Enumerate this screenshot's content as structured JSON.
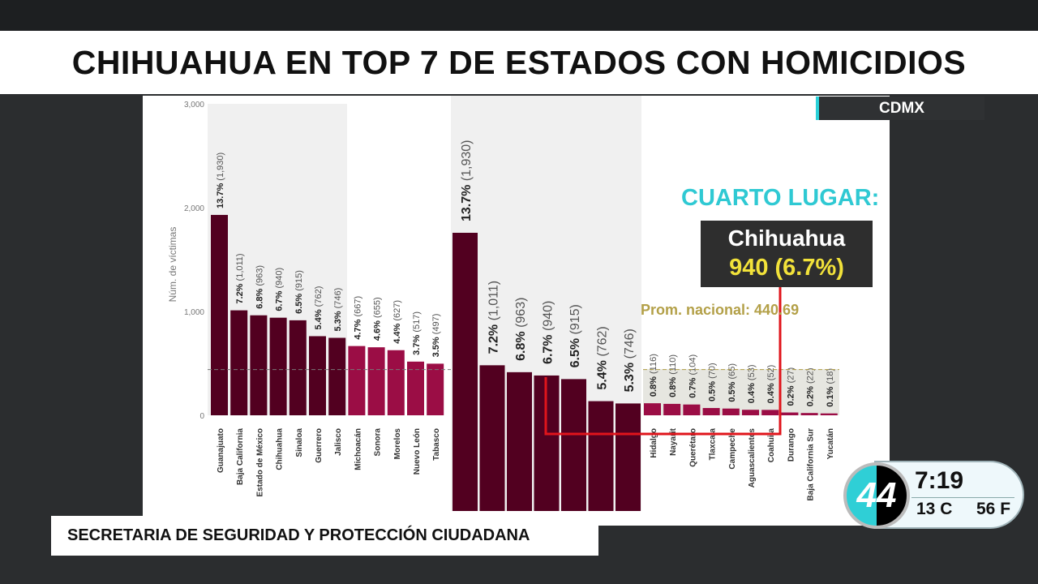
{
  "title": "CHIHUAHUA EN TOP 7 DE ESTADOS CON HOMICIDIOS",
  "location_tag": "CDMX",
  "highlight": {
    "heading": "CUARTO LUGAR:",
    "state": "Chihuahua",
    "value": "940 (6.7%)"
  },
  "source": "SECRETARIA DE SEGURIDAD Y PROTECCIÓN CIUDADANA",
  "clock": {
    "logo": "44",
    "time": "7:19",
    "temp_c": "13 C",
    "temp_f": "56 F"
  },
  "colors": {
    "dark_bar": "#520020",
    "light_bar": "#9b0d45",
    "accent": "#2fc9d3",
    "highlight_line": "#e0141b"
  },
  "chart_data": {
    "type": "bar",
    "ylabel": "Núm. de víctimas",
    "ylim": [
      0,
      3000
    ],
    "yticks": [
      "0",
      "1,000",
      "2,000",
      "3,000"
    ],
    "average_label": "Prom. nacional: 440.69",
    "average": 440.69,
    "categories": [
      "Guanajuato",
      "Baja California",
      "Estado de México",
      "Chihuahua",
      "Sinaloa",
      "Guerrero",
      "Jalisco",
      "Michoacán",
      "Sonora",
      "Morelos",
      "Nuevo León",
      "Tabasco"
    ],
    "values": [
      1930,
      1011,
      963,
      940,
      915,
      762,
      746,
      667,
      655,
      627,
      517,
      497
    ],
    "labels_pct": [
      "13.7%",
      "7.2%",
      "6.8%",
      "6.7%",
      "6.5%",
      "5.4%",
      "5.3%",
      "4.7%",
      "4.6%",
      "4.4%",
      "3.7%",
      "3.5%"
    ],
    "labels_val": [
      "(1,930)",
      "(1,011)",
      "(963)",
      "(940)",
      "(915)",
      "(762)",
      "(746)",
      "(667)",
      "(655)",
      "(627)",
      "(517)",
      "(497)"
    ],
    "zoom_values": [
      1930,
      1011,
      963,
      940,
      915,
      762,
      746
    ],
    "tail_categories": [
      "Hidalgo",
      "Nayarit",
      "Querétaro",
      "Tlaxcala",
      "Campeche",
      "Aguascalientes",
      "Coahuila",
      "Durango",
      "Baja California Sur",
      "Yucatán"
    ],
    "tail_values": [
      116,
      110,
      104,
      70,
      65,
      53,
      52,
      27,
      22,
      18
    ],
    "tail_pct": [
      "0.8%",
      "0.8%",
      "0.7%",
      "0.5%",
      "0.5%",
      "0.4%",
      "0.4%",
      "0.2%",
      "0.2%",
      "0.1%"
    ],
    "tail_val": [
      "(116)",
      "(110)",
      "(104)",
      "(70)",
      "(65)",
      "(53)",
      "(52)",
      "(27)",
      "(22)",
      "(18)"
    ]
  }
}
